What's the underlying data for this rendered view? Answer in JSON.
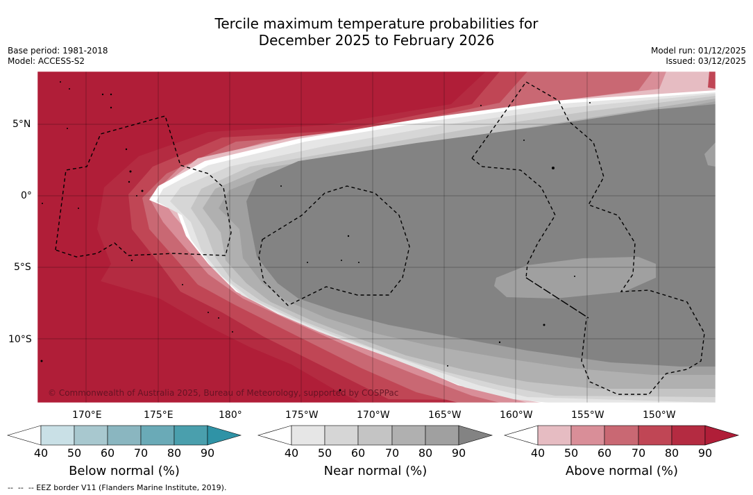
{
  "title": {
    "line1": "Tercile maximum temperature probabilities for",
    "line2": "December 2025 to February 2026"
  },
  "info": {
    "base_period": "Base period: 1981-2018",
    "model": "Model: ACCESS-S2",
    "model_run": "Model run: 01/12/2025",
    "issued": "Issued: 03/12/2025"
  },
  "map": {
    "lat_labels": [
      "5°N",
      "0°",
      "5°S",
      "10°S"
    ],
    "lon_labels": [
      "170°E",
      "175°E",
      "180°",
      "175°W",
      "170°W",
      "165°W",
      "160°W",
      "155°W",
      "150°W"
    ],
    "copyright": "© Commonwealth of Australia 2025, Bureau of Meteorology, supported by COSPPac",
    "colors": {
      "above": [
        "#f7f7f7",
        "#e6bcc2",
        "#d98e98",
        "#c96873",
        "#c04655",
        "#b42b41",
        "#b01e38"
      ],
      "near": [
        "#e6e6e6",
        "#d6d6d6",
        "#c4c4c4",
        "#b0b0b0",
        "#a0a0a0",
        "#838383"
      ],
      "below": [
        "#ffffff",
        "#c9e0e6",
        "#a8c8cf",
        "#8ab6c0",
        "#6aaab7",
        "#4a9fad",
        "#2f93a6"
      ]
    }
  },
  "colorbars": {
    "below": {
      "label": "Below normal (%)",
      "ticks": [
        "40",
        "50",
        "60",
        "70",
        "80",
        "90"
      ]
    },
    "near": {
      "label": "Near normal (%)",
      "ticks": [
        "40",
        "50",
        "60",
        "70",
        "80",
        "90"
      ]
    },
    "above": {
      "label": "Above normal (%)",
      "ticks": [
        "40",
        "50",
        "60",
        "70",
        "80",
        "90"
      ]
    }
  },
  "footer": "--  --  -- EEZ border V11 (Flanders Marine Institute, 2019)."
}
